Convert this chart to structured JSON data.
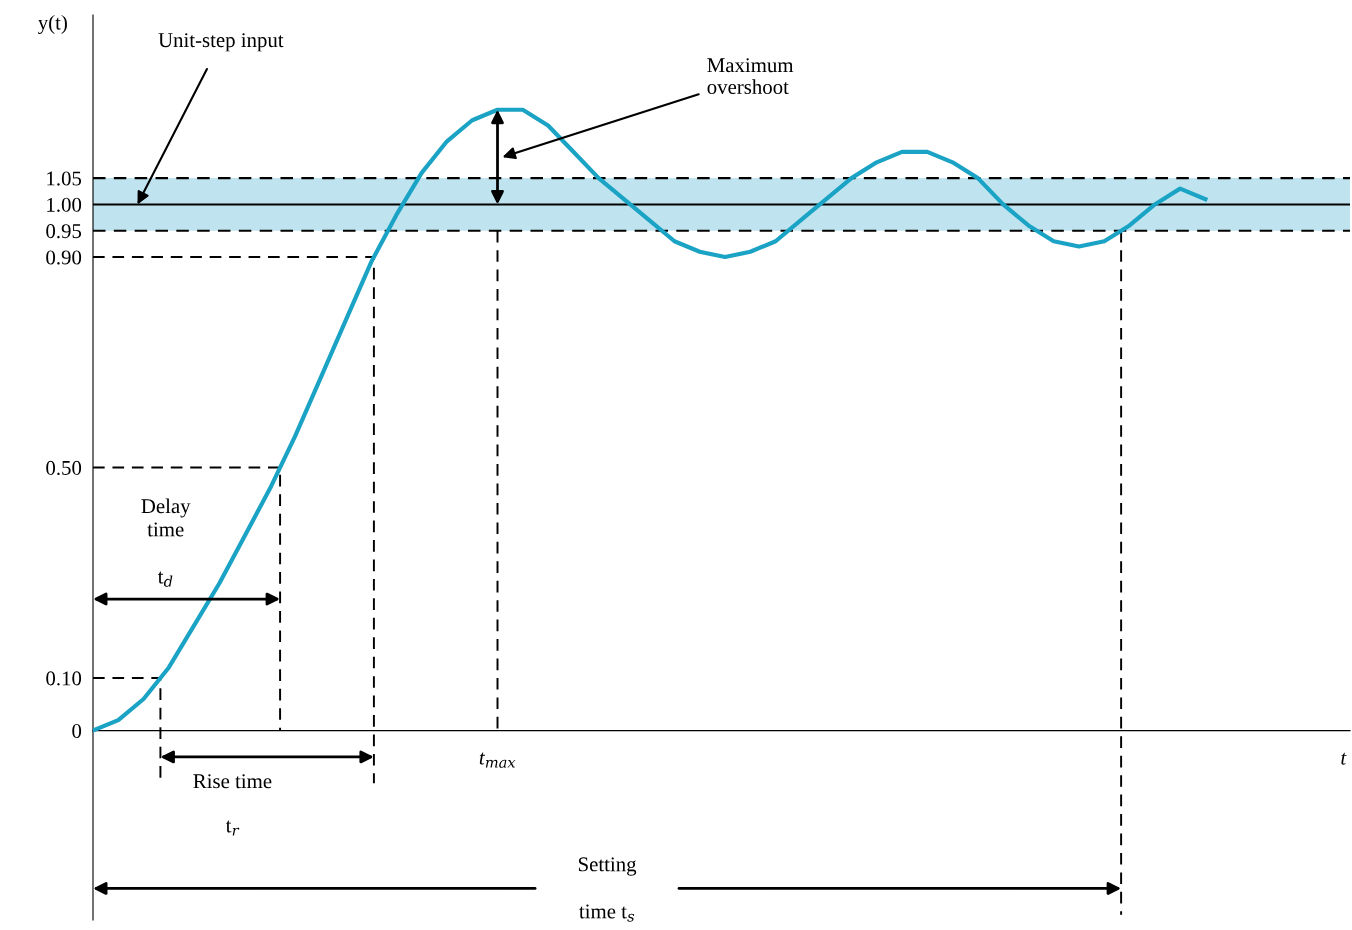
{
  "chart_data": {
    "type": "line",
    "ylabel": "y(t)",
    "ylim": [
      -0.36,
      1.36
    ],
    "yticks": [
      {
        "value": 0,
        "label": "0"
      },
      {
        "value": 0.1,
        "label": "0.10"
      },
      {
        "value": 0.5,
        "label": "0.50"
      },
      {
        "value": 0.9,
        "label": "0.90"
      },
      {
        "value": 0.95,
        "label": "0.95"
      },
      {
        "value": 1.0,
        "label": "1.00"
      },
      {
        "value": 1.05,
        "label": "1.05"
      }
    ],
    "grid": false,
    "legend": false,
    "marker": "none",
    "categories": [
      null,
      null,
      null,
      null,
      null,
      null,
      null,
      null,
      null,
      null,
      null,
      null,
      null,
      null,
      null,
      null,
      null,
      null,
      null,
      null,
      null,
      null,
      null,
      null,
      null,
      null,
      null,
      null,
      null,
      null,
      null,
      null,
      null,
      null,
      null,
      null,
      null,
      null,
      null,
      null,
      null,
      null,
      null,
      null,
      null
    ],
    "series": [
      {
        "color": "#1aa3c4",
        "values": [
          0,
          0.02,
          0.06,
          0.12,
          0.2,
          0.28,
          0.37,
          0.46,
          0.56,
          0.67,
          0.78,
          0.89,
          0.98,
          1.06,
          1.12,
          1.16,
          1.18,
          1.18,
          1.15,
          1.1,
          1.05,
          1.01,
          0.97,
          0.93,
          0.91,
          0.9,
          0.91,
          0.93,
          0.97,
          1.01,
          1.05,
          1.08,
          1.1,
          1.1,
          1.08,
          1.05,
          1.0,
          0.96,
          0.93,
          0.92,
          0.93,
          0.96,
          1.0,
          1.03,
          1.01
        ]
      }
    ],
    "ref_lines": [
      {
        "axis": "y",
        "value": 1.05,
        "color": "#000000",
        "line_style": "dashed"
      },
      {
        "axis": "y",
        "value": 1.0,
        "color": "#000000",
        "line_style": "solid"
      },
      {
        "axis": "y",
        "value": 0.95,
        "color": "#000000",
        "line_style": "dashed"
      }
    ],
    "bands": [
      {
        "axis": "y",
        "from": 0.95,
        "to": 1.05,
        "color": "#bfe4ef"
      }
    ],
    "annotations": [
      "Unit-step input",
      "Maximum\novershoot",
      "Delay\ntime",
      "t$_{d}$",
      "Rise time",
      "t$_{r}$",
      "Setting",
      "time t$_{s}$",
      "t$_{max}$",
      "t"
    ]
  }
}
